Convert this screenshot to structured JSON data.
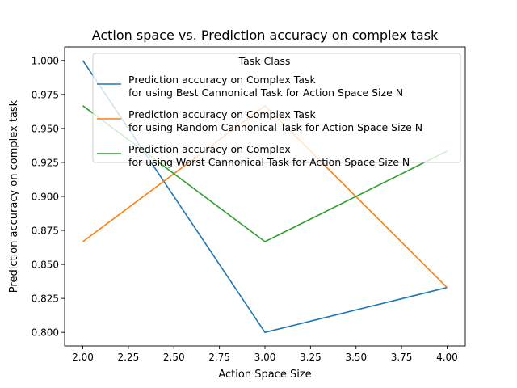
{
  "chart_data": {
    "type": "line",
    "title": "Action space vs. Prediction accuracy on complex task",
    "xlabel": "Action Space Size",
    "ylabel": "Prediction accuracy on complex task",
    "x": [
      2.0,
      3.0,
      4.0
    ],
    "xlim": [
      1.9,
      4.1
    ],
    "ylim": [
      0.79,
      1.01
    ],
    "xticks": [
      "2.00",
      "2.25",
      "2.50",
      "2.75",
      "3.00",
      "3.25",
      "3.50",
      "3.75",
      "4.00"
    ],
    "yticks": [
      "0.800",
      "0.825",
      "0.850",
      "0.875",
      "0.900",
      "0.925",
      "0.950",
      "0.975",
      "1.000"
    ],
    "grid": false,
    "legend": {
      "title": "Task Class",
      "placement": "top-right"
    },
    "series": [
      {
        "name": "Prediction accuracy on Complex Task\nfor using Best Cannonical Task for Action Space Size N",
        "name_lines": [
          "Prediction accuracy on Complex Task",
          "for using Best Cannonical Task for Action Space Size N"
        ],
        "color": "#1f77b4",
        "values": [
          1.0,
          0.8,
          0.833
        ]
      },
      {
        "name": "Prediction accuracy on Complex Task\nfor using Random Cannonical Task for Action Space Size N",
        "name_lines": [
          "Prediction accuracy on Complex Task",
          "for using Random Cannonical Task for Action Space Size N"
        ],
        "color": "#ff7f0e",
        "values": [
          0.8667,
          0.9667,
          0.833
        ]
      },
      {
        "name": "Prediction accuracy on Complex\nfor using Worst Cannonical Task for Action Space Size N",
        "name_lines": [
          "Prediction accuracy on Complex",
          "for using Worst Cannonical Task for Action Space Size N"
        ],
        "color": "#2ca02c",
        "values": [
          0.9667,
          0.8667,
          0.9333
        ]
      }
    ]
  }
}
